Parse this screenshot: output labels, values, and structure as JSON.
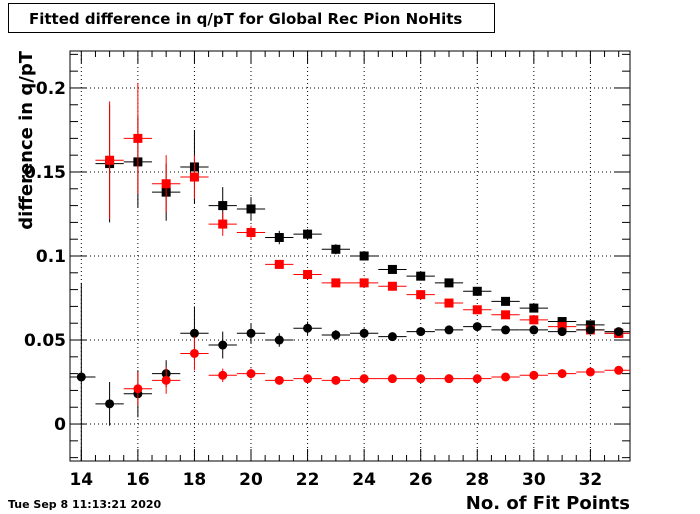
{
  "title": "Fitted difference in q/pT for Global Rec Pion NoHits",
  "timestamp": "Tue Sep  8 11:13:21 2020",
  "chart_data": {
    "type": "scatter",
    "title": "Fitted difference in q/pT for Global Rec Pion NoHits",
    "xlabel": "No. of Fit Points",
    "ylabel": "difference in q/pT",
    "xlim": [
      13.6,
      33.4
    ],
    "ylim": [
      -0.022,
      0.222
    ],
    "xticks": [
      14,
      16,
      18,
      20,
      22,
      24,
      26,
      28,
      30,
      32
    ],
    "xtick_labels": [
      "14",
      "16",
      "18",
      "20",
      "22",
      "24",
      "26",
      "28",
      "30",
      "32"
    ],
    "yticks": [
      0,
      0.05,
      0.1,
      0.15,
      0.2
    ],
    "ytick_labels": [
      "0",
      "0.05",
      "0.1",
      "0.15",
      "0.2"
    ],
    "grid": true,
    "x_error": 0.5,
    "series": [
      {
        "marker": "square",
        "color": "#000000",
        "points": [
          {
            "x": 15,
            "y": 0.155,
            "err": 0.035
          },
          {
            "x": 16,
            "y": 0.156,
            "err": 0.027
          },
          {
            "x": 17,
            "y": 0.138,
            "err": 0.017
          },
          {
            "x": 18,
            "y": 0.153,
            "err": 0.022
          },
          {
            "x": 19,
            "y": 0.13,
            "err": 0.011
          },
          {
            "x": 20,
            "y": 0.128,
            "err": 0.007
          },
          {
            "x": 21,
            "y": 0.111,
            "err": 0.004
          },
          {
            "x": 22,
            "y": 0.113,
            "err": 0.003
          },
          {
            "x": 23,
            "y": 0.104,
            "err": 0.003
          },
          {
            "x": 24,
            "y": 0.1,
            "err": 0.002
          },
          {
            "x": 25,
            "y": 0.092,
            "err": 0.002
          },
          {
            "x": 26,
            "y": 0.088,
            "err": 0.002
          },
          {
            "x": 27,
            "y": 0.084,
            "err": 0.002
          },
          {
            "x": 28,
            "y": 0.079,
            "err": 0.002
          },
          {
            "x": 29,
            "y": 0.073,
            "err": 0.002
          },
          {
            "x": 30,
            "y": 0.069,
            "err": 0.002
          },
          {
            "x": 31,
            "y": 0.061,
            "err": 0.002
          },
          {
            "x": 32,
            "y": 0.059,
            "err": 0.002
          },
          {
            "x": 33,
            "y": 0.054,
            "err": 0.002
          }
        ]
      },
      {
        "marker": "square",
        "color": "#ff0000",
        "points": [
          {
            "x": 15,
            "y": 0.157,
            "err": 0.035
          },
          {
            "x": 16,
            "y": 0.17,
            "err": 0.033
          },
          {
            "x": 17,
            "y": 0.143,
            "err": 0.017
          },
          {
            "x": 18,
            "y": 0.147,
            "err": 0.013
          },
          {
            "x": 19,
            "y": 0.119,
            "err": 0.007
          },
          {
            "x": 20,
            "y": 0.114,
            "err": 0.004
          },
          {
            "x": 21,
            "y": 0.095,
            "err": 0.002
          },
          {
            "x": 22,
            "y": 0.089,
            "err": 0.002
          },
          {
            "x": 23,
            "y": 0.084,
            "err": 0.002
          },
          {
            "x": 24,
            "y": 0.084,
            "err": 0.002
          },
          {
            "x": 25,
            "y": 0.082,
            "err": 0.002
          },
          {
            "x": 26,
            "y": 0.077,
            "err": 0.002
          },
          {
            "x": 27,
            "y": 0.072,
            "err": 0.002
          },
          {
            "x": 28,
            "y": 0.068,
            "err": 0.002
          },
          {
            "x": 29,
            "y": 0.065,
            "err": 0.002
          },
          {
            "x": 30,
            "y": 0.062,
            "err": 0.002
          },
          {
            "x": 31,
            "y": 0.058,
            "err": 0.002
          },
          {
            "x": 32,
            "y": 0.056,
            "err": 0.002
          },
          {
            "x": 33,
            "y": 0.054,
            "err": 0.002
          }
        ]
      },
      {
        "marker": "circle",
        "color": "#000000",
        "points": [
          {
            "x": 14,
            "y": 0.028,
            "err": 0.056
          },
          {
            "x": 15,
            "y": 0.012,
            "err": 0.013
          },
          {
            "x": 16,
            "y": 0.018,
            "err": 0.014
          },
          {
            "x": 17,
            "y": 0.03,
            "err": 0.008
          },
          {
            "x": 18,
            "y": 0.054,
            "err": 0.016
          },
          {
            "x": 19,
            "y": 0.047,
            "err": 0.008
          },
          {
            "x": 20,
            "y": 0.054,
            "err": 0.006
          },
          {
            "x": 21,
            "y": 0.05,
            "err": 0.004
          },
          {
            "x": 22,
            "y": 0.057,
            "err": 0.004
          },
          {
            "x": 23,
            "y": 0.053,
            "err": 0.003
          },
          {
            "x": 24,
            "y": 0.054,
            "err": 0.003
          },
          {
            "x": 25,
            "y": 0.052,
            "err": 0.002
          },
          {
            "x": 26,
            "y": 0.055,
            "err": 0.002
          },
          {
            "x": 27,
            "y": 0.056,
            "err": 0.002
          },
          {
            "x": 28,
            "y": 0.058,
            "err": 0.002
          },
          {
            "x": 29,
            "y": 0.056,
            "err": 0.002
          },
          {
            "x": 30,
            "y": 0.056,
            "err": 0.002
          },
          {
            "x": 31,
            "y": 0.055,
            "err": 0.002
          },
          {
            "x": 32,
            "y": 0.056,
            "err": 0.002
          },
          {
            "x": 33,
            "y": 0.055,
            "err": 0.002
          }
        ]
      },
      {
        "marker": "circle",
        "color": "#ff0000",
        "points": [
          {
            "x": 16,
            "y": 0.021,
            "err": 0.01
          },
          {
            "x": 17,
            "y": 0.026,
            "err": 0.008
          },
          {
            "x": 18,
            "y": 0.042,
            "err": 0.01
          },
          {
            "x": 19,
            "y": 0.029,
            "err": 0.004
          },
          {
            "x": 20,
            "y": 0.03,
            "err": 0.003
          },
          {
            "x": 21,
            "y": 0.026,
            "err": 0.002
          },
          {
            "x": 22,
            "y": 0.027,
            "err": 0.002
          },
          {
            "x": 23,
            "y": 0.026,
            "err": 0.002
          },
          {
            "x": 24,
            "y": 0.027,
            "err": 0.002
          },
          {
            "x": 25,
            "y": 0.027,
            "err": 0.001
          },
          {
            "x": 26,
            "y": 0.027,
            "err": 0.001
          },
          {
            "x": 27,
            "y": 0.027,
            "err": 0.001
          },
          {
            "x": 28,
            "y": 0.027,
            "err": 0.001
          },
          {
            "x": 29,
            "y": 0.028,
            "err": 0.001
          },
          {
            "x": 30,
            "y": 0.029,
            "err": 0.001
          },
          {
            "x": 31,
            "y": 0.03,
            "err": 0.001
          },
          {
            "x": 32,
            "y": 0.031,
            "err": 0.001
          },
          {
            "x": 33,
            "y": 0.032,
            "err": 0.001
          }
        ]
      }
    ]
  }
}
